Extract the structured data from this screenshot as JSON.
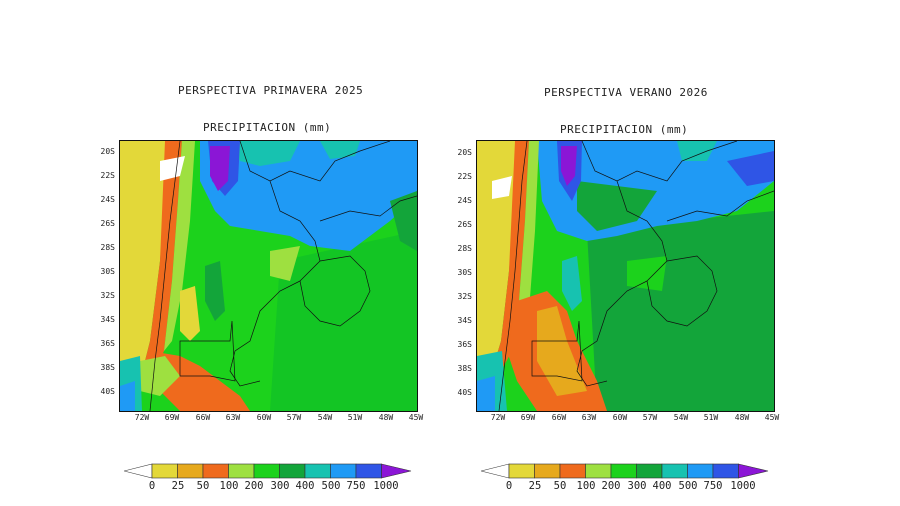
{
  "legend": {
    "levels": [
      "0",
      "25",
      "50",
      "100",
      "200",
      "300",
      "400",
      "500",
      "750",
      "1000"
    ],
    "colors": [
      "#ffffff",
      "#e3d839",
      "#e6a91d",
      "#ef6a1d",
      "#9ee040",
      "#1cd21c",
      "#13a53a",
      "#17c2b0",
      "#1f9af5",
      "#2f55e6",
      "#8b16d6"
    ]
  },
  "panels": [
    {
      "title": "PERSPECTIVA PRIMAVERA 2025",
      "subtitle": "PRECIPITACION (mm)",
      "lat_labels": [
        "20S",
        "22S",
        "24S",
        "26S",
        "28S",
        "30S",
        "32S",
        "34S",
        "36S",
        "38S",
        "40S"
      ],
      "lon_labels": [
        "72W",
        "69W",
        "66W",
        "63W",
        "60W",
        "57W",
        "54W",
        "51W",
        "48W",
        "45W"
      ],
      "variant": "spring"
    },
    {
      "title": "PERSPECTIVA VERANO 2026",
      "subtitle": "PRECIPITACION (mm)",
      "lat_labels": [
        "20S",
        "22S",
        "24S",
        "26S",
        "28S",
        "30S",
        "32S",
        "34S",
        "36S",
        "38S",
        "40S"
      ],
      "lon_labels": [
        "72W",
        "69W",
        "66W",
        "63W",
        "60W",
        "57W",
        "54W",
        "51W",
        "48W",
        "45W"
      ],
      "variant": "summer"
    }
  ]
}
